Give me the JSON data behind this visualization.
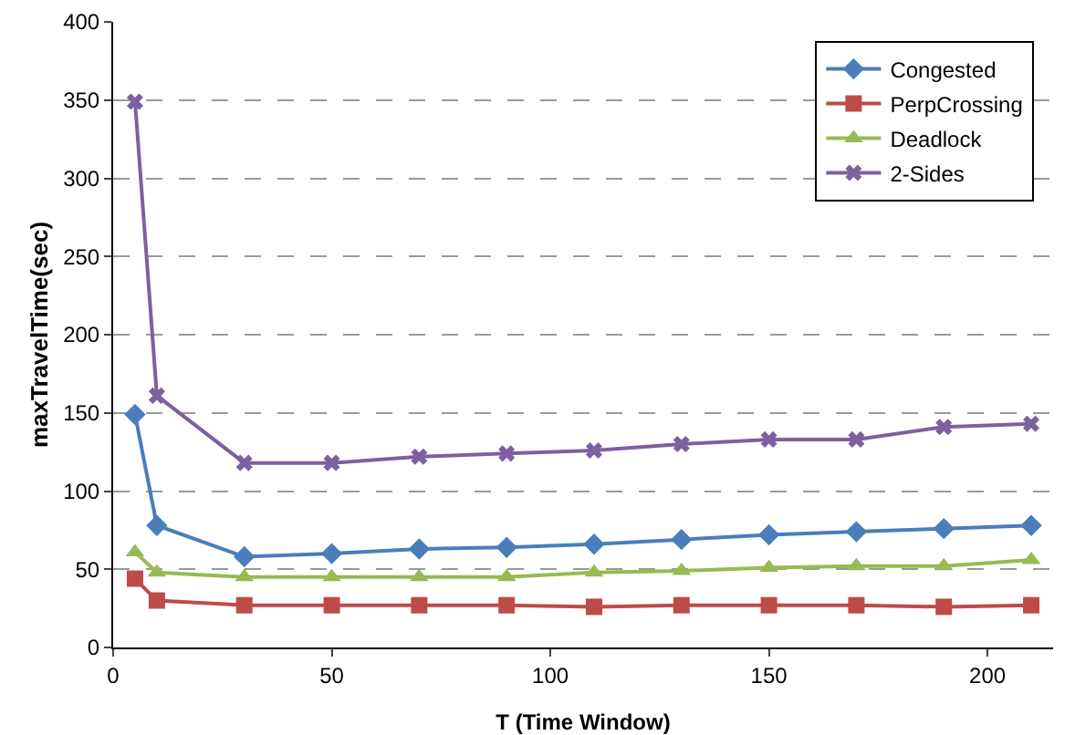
{
  "chart_data": {
    "type": "line",
    "xlabel": "T (Time Window)",
    "ylabel": "maxTravelTime(sec)",
    "x": [
      5,
      10,
      30,
      50,
      70,
      90,
      110,
      130,
      150,
      170,
      190,
      210
    ],
    "series": [
      {
        "name": "Congested",
        "color": "#4a7ebb",
        "marker": "diamond",
        "values": [
          149,
          78,
          58,
          60,
          63,
          64,
          66,
          69,
          72,
          74,
          76,
          78
        ]
      },
      {
        "name": "PerpCrossing",
        "color": "#be4b48",
        "marker": "square",
        "values": [
          44,
          30,
          27,
          27,
          27,
          27,
          26,
          27,
          27,
          27,
          26,
          27
        ]
      },
      {
        "name": "Deadlock",
        "color": "#98b954",
        "marker": "triangle",
        "values": [
          61,
          48,
          45,
          45,
          45,
          45,
          48,
          49,
          51,
          52,
          52,
          56
        ]
      },
      {
        "name": "2-Sides",
        "color": "#7d60a0",
        "marker": "cross",
        "values": [
          349,
          161,
          118,
          118,
          122,
          124,
          126,
          130,
          133,
          133,
          141,
          143
        ]
      }
    ],
    "xlim": [
      0,
      215
    ],
    "xticks": [
      0,
      50,
      100,
      150,
      200
    ],
    "ylim": [
      0,
      400
    ],
    "yticks": [
      0,
      50,
      100,
      150,
      200,
      250,
      300,
      350,
      400
    ],
    "grid": "y",
    "legend": "top right",
    "line_style": "solid"
  }
}
